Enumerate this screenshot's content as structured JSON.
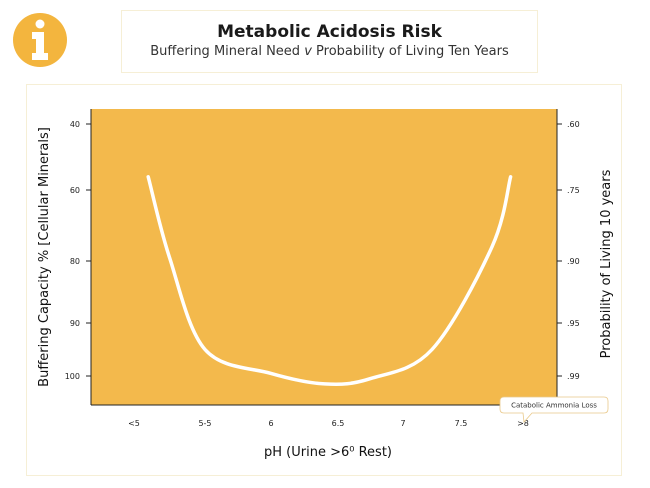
{
  "header": {
    "title": "Metabolic Acidosis Risk",
    "subtitle_part1": "Buffering Mineral Need",
    "subtitle_v": "v",
    "subtitle_part2": "Probability of Living Ten Years",
    "icon": "info-icon",
    "icon_color": "#f3b53e"
  },
  "chart_data": {
    "type": "line",
    "title": "Metabolic Acidosis Risk",
    "subtitle": "Buffering Mineral Need v Probability of Living Ten Years",
    "xlabel": "pH (Urine >6⁰ Rest)",
    "ylabel": "Buffering Capacity % [Cellular Minerals]",
    "y2label": "Probability of Living 10 years",
    "x_ticks": [
      "<5",
      "5-5",
      "6",
      "6.5",
      "7",
      "7.5",
      ">8"
    ],
    "y_ticks": [
      "40",
      "60",
      "80",
      "90",
      "100"
    ],
    "y2_ticks": [
      ".60",
      ".75",
      ".90",
      ".95",
      ".99"
    ],
    "ylim": [
      40,
      100
    ],
    "y_inverted": true,
    "series": [
      {
        "x": [
          4.7,
          5.0,
          5.5,
          6.0,
          6.4,
          6.75,
          7.25,
          7.75,
          7.9
        ],
        "y": [
          56,
          79,
          95,
          99.5,
          101.5,
          100.5,
          95,
          76,
          56
        ]
      }
    ],
    "background_color": "#f3b94c",
    "line_color": "#ffffff",
    "annotation": "Catabolic Ammonia Loss",
    "grid": false
  }
}
